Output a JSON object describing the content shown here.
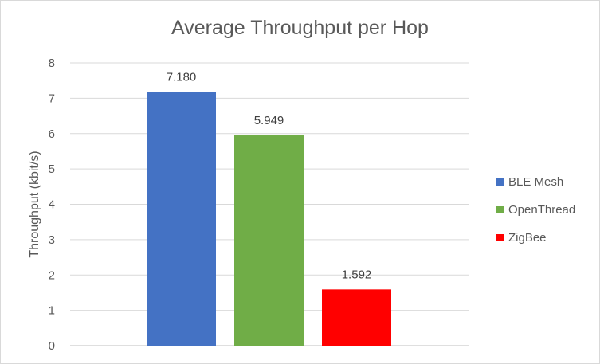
{
  "chart_data": {
    "type": "bar",
    "title": "Average Throughput per Hop",
    "xlabel": "",
    "ylabel": "Throughput (kbit/s)",
    "ylim": [
      0,
      8
    ],
    "yticks": [
      0,
      1,
      2,
      3,
      4,
      5,
      6,
      7,
      8
    ],
    "grid": true,
    "legend_position": "right",
    "series": [
      {
        "name": "BLE Mesh",
        "value": 7.18,
        "label": "7.180",
        "color": "#4472c4"
      },
      {
        "name": "OpenThread",
        "value": 5.949,
        "label": "5.949",
        "color": "#70ad47"
      },
      {
        "name": "ZigBee",
        "value": 1.592,
        "label": "1.592",
        "color": "#ff0000"
      }
    ]
  }
}
